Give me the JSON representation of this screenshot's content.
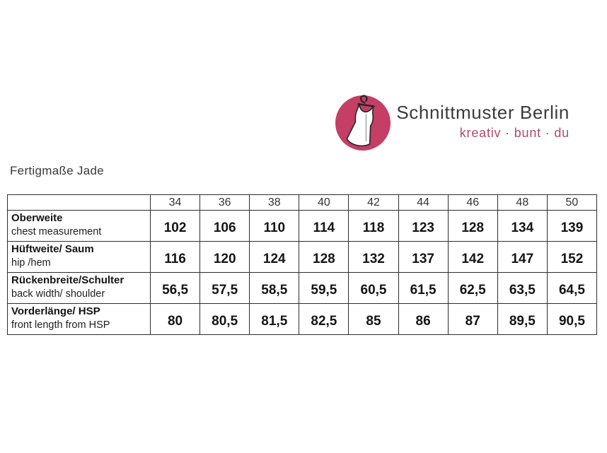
{
  "logo": {
    "brand": "Schnittmuster Berlin",
    "tagline": "kreativ · bunt · du",
    "colors": {
      "circle": "#c43e65",
      "brand_text": "#3b3b3b",
      "tagline_text": "#b04b6e",
      "dress_outline": "#262626",
      "dress_fill": "#ffffff"
    }
  },
  "title": "Fertigmaße Jade",
  "table": {
    "header_sizes": [
      "34",
      "36",
      "38",
      "40",
      "42",
      "44",
      "46",
      "48",
      "50"
    ],
    "rows": [
      {
        "label_de": "Oberweite",
        "label_en": "chest measurement",
        "values": [
          "102",
          "106",
          "110",
          "114",
          "118",
          "123",
          "128",
          "134",
          "139"
        ]
      },
      {
        "label_de": "Hüftweite/ Saum",
        "label_en": "hip /hem",
        "values": [
          "116",
          "120",
          "124",
          "128",
          "132",
          "137",
          "142",
          "147",
          "152"
        ]
      },
      {
        "label_de": "Rückenbreite/Schulter",
        "label_en": "back width/ shoulder",
        "values": [
          "56,5",
          "57,5",
          "58,5",
          "59,5",
          "60,5",
          "61,5",
          "62,5",
          "63,5",
          "64,5"
        ]
      },
      {
        "label_de": "Vorderlänge/ HSP",
        "label_en": "front length from HSP",
        "values": [
          "80",
          "80,5",
          "81,5",
          "82,5",
          "85",
          "86",
          "87",
          "89,5",
          "90,5"
        ]
      }
    ]
  },
  "chart_data": {
    "type": "table",
    "title": "Fertigmaße Jade",
    "columns": [
      "",
      "34",
      "36",
      "38",
      "40",
      "42",
      "44",
      "46",
      "48",
      "50"
    ],
    "rows": [
      [
        "Oberweite / chest measurement",
        "102",
        "106",
        "110",
        "114",
        "118",
        "123",
        "128",
        "134",
        "139"
      ],
      [
        "Hüftweite/ Saum / hip /hem",
        "116",
        "120",
        "124",
        "128",
        "132",
        "137",
        "142",
        "147",
        "152"
      ],
      [
        "Rückenbreite/Schulter / back width/ shoulder",
        "56,5",
        "57,5",
        "58,5",
        "59,5",
        "60,5",
        "61,5",
        "62,5",
        "63,5",
        "64,5"
      ],
      [
        "Vorderlänge/ HSP / front length from HSP",
        "80",
        "80,5",
        "81,5",
        "82,5",
        "85",
        "86",
        "87",
        "89,5",
        "90,5"
      ]
    ]
  }
}
